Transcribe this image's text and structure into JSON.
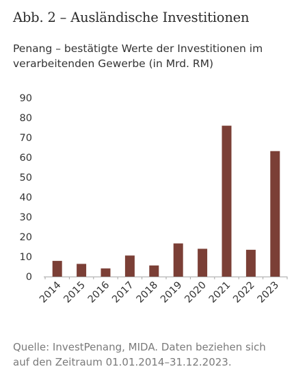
{
  "figure": {
    "title": "Abb. 2 – Ausländische Investitionen",
    "subtitle_lines": [
      "Penang – bestätigte Werte der Investitionen im",
      "verarbeitenden Gewerbe (in Mrd. RM)"
    ],
    "source_lines": [
      "Quelle: InvestPenang, MIDA. Daten beziehen sich",
      "auf den Zeitraum 01.01.2014–31.12.2023."
    ]
  },
  "chart_data": {
    "type": "bar",
    "title": "Abb. 2 – Ausländische Investitionen",
    "subtitle": "Penang – bestätigte Werte der Investitionen im verarbeitenden Gewerbe (in Mrd. RM)",
    "xlabel": "",
    "ylabel": "",
    "categories": [
      "2014",
      "2015",
      "2016",
      "2017",
      "2018",
      "2019",
      "2020",
      "2021",
      "2022",
      "2023"
    ],
    "values": [
      7.9,
      6.4,
      4.1,
      10.6,
      5.6,
      16.7,
      14.0,
      76.0,
      13.5,
      63.2
    ],
    "ylim": [
      0,
      90
    ],
    "yticks": [
      "0",
      "10",
      "20",
      "30",
      "40",
      "50",
      "60",
      "70",
      "80",
      "90"
    ],
    "grid": false,
    "legend": "none",
    "bar_color": "#7b3f36",
    "axis_color": "#a6a6a6",
    "text_color": "#333333"
  }
}
